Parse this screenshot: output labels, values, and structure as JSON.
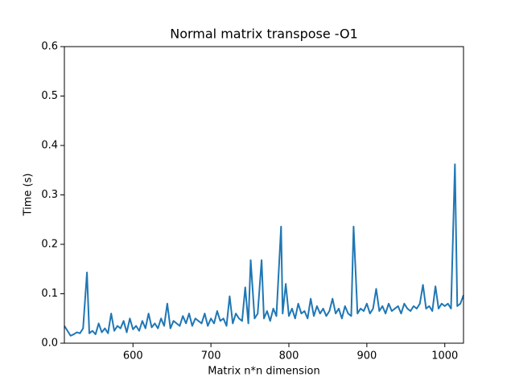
{
  "chart_data": {
    "type": "line",
    "title": "Normal matrix transpose -O1",
    "x_label": "Matrix n*n dimension",
    "y_label": "Time (s)",
    "x": [
      512,
      516,
      520,
      524,
      528,
      532,
      536,
      541,
      544,
      548,
      552,
      556,
      560,
      564,
      568,
      572,
      576,
      580,
      584,
      588,
      592,
      596,
      600,
      604,
      608,
      612,
      616,
      620,
      624,
      628,
      632,
      636,
      640,
      644,
      648,
      652,
      656,
      660,
      664,
      668,
      672,
      676,
      680,
      684,
      688,
      692,
      696,
      700,
      704,
      708,
      712,
      716,
      720,
      724,
      728,
      732,
      736,
      740,
      744,
      748,
      751,
      756,
      760,
      765,
      768,
      772,
      776,
      780,
      784,
      790,
      792,
      796,
      800,
      804,
      808,
      812,
      816,
      820,
      824,
      828,
      832,
      836,
      840,
      844,
      848,
      852,
      856,
      860,
      864,
      868,
      872,
      876,
      880,
      883,
      888,
      892,
      896,
      900,
      904,
      908,
      912,
      916,
      920,
      924,
      928,
      932,
      936,
      940,
      944,
      948,
      952,
      956,
      960,
      964,
      968,
      972,
      976,
      980,
      984,
      988,
      992,
      996,
      1000,
      1004,
      1008,
      1013,
      1016,
      1020,
      1024
    ],
    "series": [
      {
        "name": "Time",
        "color": "#1f77b4",
        "values": [
          0.035,
          0.025,
          0.015,
          0.018,
          0.022,
          0.02,
          0.03,
          0.143,
          0.02,
          0.025,
          0.018,
          0.04,
          0.022,
          0.03,
          0.02,
          0.06,
          0.025,
          0.035,
          0.03,
          0.045,
          0.022,
          0.05,
          0.028,
          0.035,
          0.025,
          0.045,
          0.03,
          0.06,
          0.032,
          0.04,
          0.03,
          0.05,
          0.035,
          0.08,
          0.03,
          0.045,
          0.04,
          0.035,
          0.055,
          0.04,
          0.06,
          0.035,
          0.05,
          0.045,
          0.04,
          0.06,
          0.035,
          0.05,
          0.04,
          0.065,
          0.045,
          0.05,
          0.035,
          0.095,
          0.04,
          0.06,
          0.05,
          0.045,
          0.113,
          0.04,
          0.168,
          0.05,
          0.06,
          0.168,
          0.05,
          0.065,
          0.045,
          0.07,
          0.055,
          0.236,
          0.06,
          0.12,
          0.055,
          0.07,
          0.05,
          0.08,
          0.06,
          0.065,
          0.05,
          0.09,
          0.055,
          0.075,
          0.06,
          0.07,
          0.055,
          0.065,
          0.09,
          0.06,
          0.07,
          0.05,
          0.075,
          0.06,
          0.055,
          0.236,
          0.06,
          0.07,
          0.065,
          0.08,
          0.06,
          0.07,
          0.11,
          0.065,
          0.075,
          0.06,
          0.08,
          0.065,
          0.07,
          0.075,
          0.06,
          0.08,
          0.07,
          0.065,
          0.075,
          0.07,
          0.08,
          0.118,
          0.07,
          0.075,
          0.065,
          0.115,
          0.07,
          0.08,
          0.075,
          0.08,
          0.07,
          0.362,
          0.075,
          0.08,
          0.097
        ]
      }
    ],
    "xlim": [
      512,
      1024
    ],
    "xticks": [
      600,
      700,
      800,
      900,
      1000
    ],
    "ylim": [
      0,
      0.6
    ],
    "yticks": [
      {
        "value": 0,
        "label": "0.0"
      },
      0.1,
      0.2,
      0.3,
      0.4,
      0.5,
      0.6
    ]
  }
}
